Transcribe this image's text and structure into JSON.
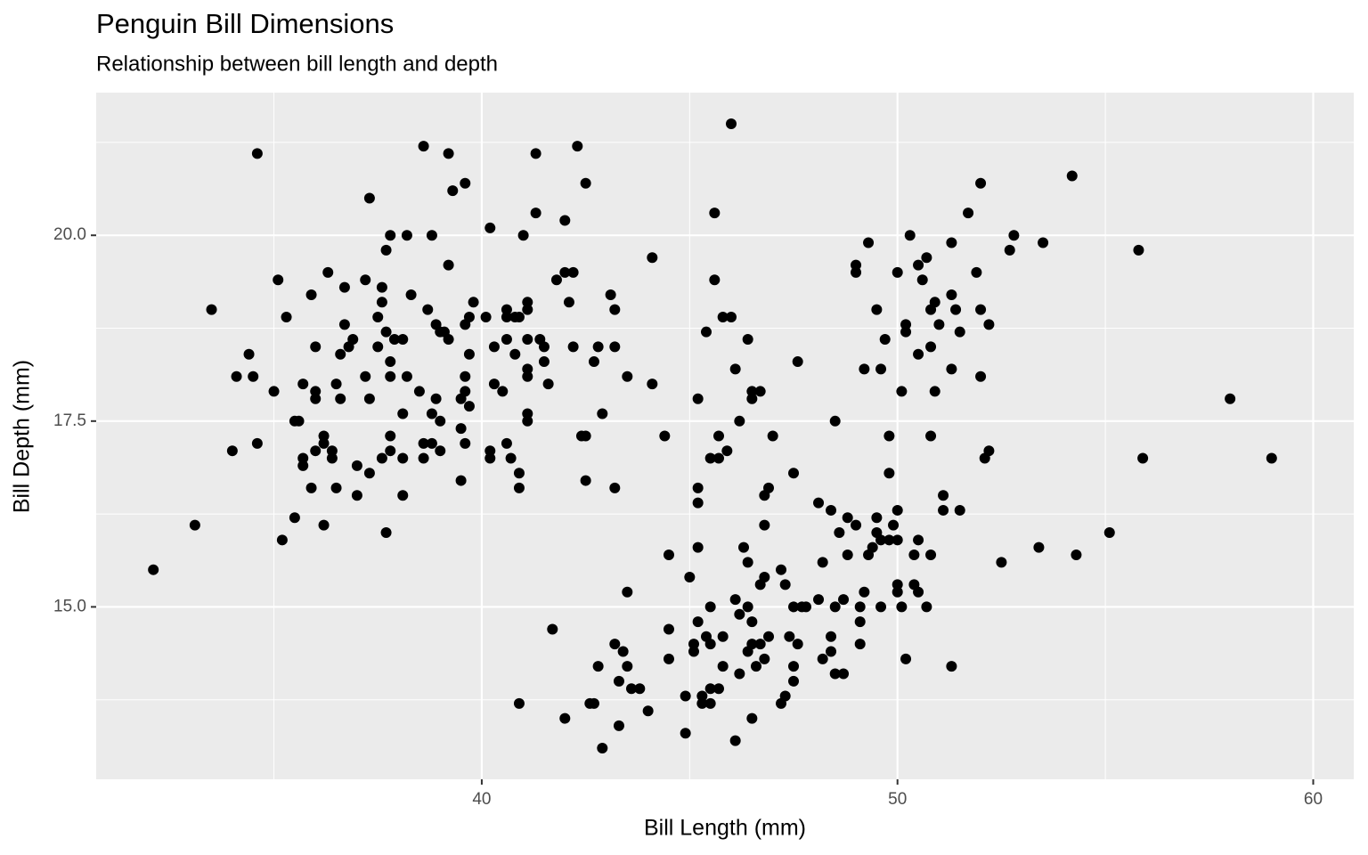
{
  "chart_data": {
    "type": "scatter",
    "title": "Penguin Bill Dimensions",
    "subtitle": "Relationship between bill length and depth",
    "x_label": "Bill Length (mm)",
    "y_label": "Bill Depth (mm)",
    "color": "#000000",
    "grid": true,
    "xlim": [
      30.725,
      60.975
    ],
    "ylim": [
      12.68,
      21.92
    ],
    "xticks": [
      40,
      50,
      60
    ],
    "yticks": [
      {
        "value": 15,
        "label": "15.0"
      },
      {
        "value": 17.5,
        "label": "17.5"
      },
      {
        "value": 20,
        "label": "20.0"
      }
    ],
    "x": [
      32.1,
      33.1,
      33.5,
      34.0,
      34.1,
      34.4,
      34.5,
      34.6,
      34.6,
      35.0,
      35.1,
      35.2,
      35.3,
      35.5,
      35.6,
      35.5,
      35.7,
      35.7,
      35.7,
      35.9,
      35.9,
      36.0,
      36.0,
      36.0,
      36.0,
      36.2,
      36.2,
      36.2,
      36.3,
      36.4,
      36.4,
      36.5,
      36.5,
      36.6,
      36.6,
      36.7,
      36.7,
      36.8,
      36.9,
      37.0,
      37.0,
      37.2,
      37.2,
      37.3,
      37.3,
      37.3,
      37.5,
      37.5,
      37.6,
      37.6,
      37.6,
      37.7,
      37.7,
      37.7,
      37.8,
      37.8,
      37.8,
      37.8,
      37.8,
      37.9,
      38.1,
      38.1,
      38.1,
      38.1,
      38.2,
      38.2,
      38.3,
      38.5,
      38.6,
      38.6,
      38.6,
      38.7,
      38.8,
      38.8,
      38.8,
      38.9,
      38.9,
      39.0,
      39.0,
      39.0,
      39.1,
      39.2,
      39.2,
      39.2,
      39.3,
      39.5,
      39.5,
      39.5,
      39.6,
      39.6,
      39.6,
      39.6,
      39.6,
      39.7,
      39.7,
      39.7,
      39.8,
      40.1,
      40.2,
      40.2,
      40.2,
      40.3,
      40.3,
      40.5,
      40.6,
      40.6,
      40.6,
      40.6,
      40.7,
      40.8,
      40.8,
      40.9,
      40.9,
      40.9,
      40.9,
      41.0,
      41.1,
      41.1,
      41.1,
      41.1,
      41.1,
      41.1,
      41.1,
      41.3,
      41.3,
      41.4,
      41.5,
      41.5,
      41.6,
      41.7,
      41.8,
      42.0,
      42.0,
      42.0,
      42.1,
      42.2,
      42.2,
      42.3,
      42.4,
      42.5,
      42.5,
      42.5,
      42.6,
      42.7,
      42.7,
      42.8,
      42.8,
      42.9,
      42.9,
      43.1,
      43.2,
      43.2,
      43.2,
      43.2,
      43.3,
      43.3,
      43.4,
      43.5,
      43.5,
      43.5,
      43.6,
      43.8,
      44.0,
      44.1,
      44.1,
      44.4,
      44.5,
      44.5,
      44.5,
      44.9,
      44.9,
      45.0,
      45.1,
      45.1,
      45.2,
      45.2,
      45.2,
      45.2,
      45.2,
      45.3,
      45.3,
      45.4,
      45.4,
      45.5,
      45.5,
      45.5,
      45.5,
      45.5,
      45.6,
      45.6,
      45.7,
      45.7,
      45.7,
      45.8,
      45.8,
      45.8,
      45.9,
      46.0,
      46.0,
      46.1,
      46.1,
      46.1,
      46.2,
      46.2,
      46.2,
      46.3,
      46.4,
      46.4,
      46.4,
      46.4,
      46.5,
      46.5,
      46.5,
      46.5,
      46.5,
      46.6,
      46.7,
      46.7,
      46.7,
      46.8,
      46.8,
      46.8,
      46.8,
      46.9,
      46.9,
      47.0,
      47.2,
      47.2,
      47.3,
      47.3,
      47.4,
      47.5,
      47.5,
      47.5,
      47.5,
      47.6,
      47.6,
      47.7,
      47.8,
      48.1,
      48.1,
      48.2,
      48.2,
      48.4,
      48.4,
      48.4,
      48.5,
      48.5,
      48.5,
      48.6,
      48.7,
      48.7,
      48.8,
      48.8,
      49.0,
      49.0,
      49.0,
      49.1,
      49.1,
      49.1,
      49.2,
      49.2,
      49.3,
      49.3,
      49.4,
      49.5,
      49.5,
      49.5,
      49.6,
      49.6,
      49.6,
      49.7,
      49.8,
      49.8,
      49.8,
      49.9,
      50.0,
      50.0,
      50.0,
      50.0,
      50.0,
      50.1,
      50.1,
      50.2,
      50.2,
      50.2,
      50.3,
      50.4,
      50.4,
      50.5,
      50.5,
      50.5,
      50.5,
      50.6,
      50.7,
      50.7,
      50.8,
      50.8,
      50.8,
      50.8,
      50.9,
      50.9,
      51.0,
      51.1,
      51.1,
      51.3,
      51.3,
      51.3,
      51.3,
      51.4,
      51.5,
      51.5,
      51.7,
      51.9,
      52.0,
      52.0,
      52.0,
      52.1,
      52.2,
      52.2,
      52.5,
      52.7,
      52.8,
      53.4,
      53.5,
      54.2,
      54.3,
      55.1,
      55.8,
      55.9,
      58.0,
      59.0
    ],
    "values": [
      15.5,
      16.1,
      19.0,
      17.1,
      18.1,
      18.4,
      18.1,
      21.1,
      17.2,
      17.9,
      19.4,
      15.9,
      18.9,
      17.5,
      17.5,
      16.2,
      18.0,
      17.0,
      16.9,
      19.2,
      16.6,
      18.5,
      17.9,
      17.8,
      17.1,
      17.3,
      17.2,
      16.1,
      19.5,
      17.1,
      17.0,
      18.0,
      16.6,
      18.4,
      17.8,
      19.3,
      18.8,
      18.5,
      18.6,
      16.9,
      16.5,
      19.4,
      18.1,
      20.5,
      17.8,
      16.8,
      18.9,
      18.5,
      19.3,
      19.1,
      17.0,
      19.8,
      18.7,
      16.0,
      20.0,
      18.3,
      18.1,
      17.3,
      17.1,
      18.6,
      18.6,
      17.6,
      17.0,
      16.5,
      20.0,
      18.1,
      19.2,
      17.9,
      21.2,
      17.2,
      17.0,
      19.0,
      20.0,
      17.6,
      17.2,
      18.8,
      17.8,
      18.7,
      17.5,
      17.1,
      18.7,
      21.1,
      19.6,
      18.6,
      20.6,
      17.4,
      16.7,
      17.8,
      20.7,
      18.8,
      18.1,
      17.9,
      17.2,
      18.9,
      17.7,
      18.4,
      19.1,
      18.9,
      20.1,
      17.1,
      17.0,
      18.5,
      18.0,
      17.9,
      18.9,
      19.0,
      18.6,
      17.2,
      17.0,
      18.4,
      18.9,
      18.9,
      16.8,
      16.6,
      13.7,
      20.0,
      19.0,
      19.1,
      18.6,
      18.2,
      18.1,
      17.6,
      17.5,
      21.1,
      20.3,
      18.6,
      18.5,
      18.3,
      18.0,
      14.7,
      19.4,
      20.2,
      19.5,
      13.5,
      19.1,
      19.5,
      18.5,
      21.2,
      17.3,
      20.7,
      17.3,
      16.7,
      13.7,
      18.3,
      13.7,
      18.5,
      14.2,
      17.6,
      13.1,
      19.2,
      19.0,
      18.5,
      16.6,
      14.5,
      13.4,
      14.0,
      14.4,
      15.2,
      18.1,
      14.2,
      13.9,
      13.9,
      13.6,
      19.7,
      18.0,
      17.3,
      15.7,
      14.7,
      14.3,
      13.8,
      13.3,
      15.4,
      14.5,
      14.4,
      17.8,
      16.6,
      16.4,
      15.8,
      14.8,
      13.7,
      13.8,
      18.7,
      14.6,
      15.0,
      14.5,
      13.7,
      17.0,
      13.9,
      20.3,
      19.4,
      17.3,
      13.9,
      17.0,
      18.9,
      14.6,
      14.2,
      17.1,
      18.9,
      21.5,
      18.2,
      15.1,
      13.2,
      17.5,
      14.9,
      14.1,
      15.8,
      18.6,
      15.0,
      15.6,
      14.4,
      17.9,
      17.8,
      14.8,
      14.5,
      13.5,
      14.2,
      17.9,
      15.3,
      14.5,
      16.5,
      16.1,
      15.4,
      14.3,
      16.6,
      14.6,
      17.3,
      15.5,
      13.7,
      15.3,
      13.8,
      14.6,
      16.8,
      15.0,
      14.2,
      14.0,
      18.3,
      14.5,
      15.0,
      15.0,
      15.1,
      16.4,
      15.6,
      14.3,
      16.3,
      14.6,
      14.4,
      17.5,
      15.0,
      14.1,
      16.0,
      15.1,
      14.1,
      16.2,
      15.7,
      19.6,
      19.5,
      16.1,
      15.0,
      14.8,
      14.5,
      18.2,
      15.2,
      19.9,
      15.7,
      15.8,
      19.0,
      16.2,
      16.0,
      18.2,
      15.9,
      15.0,
      18.6,
      17.3,
      16.8,
      15.9,
      16.1,
      16.3,
      15.9,
      15.3,
      15.2,
      19.5,
      17.9,
      15.0,
      18.8,
      18.7,
      14.3,
      20.0,
      15.7,
      15.3,
      19.6,
      18.4,
      15.9,
      15.2,
      19.4,
      19.7,
      15.0,
      19.0,
      18.5,
      17.3,
      15.7,
      19.1,
      17.9,
      18.8,
      16.5,
      16.3,
      19.9,
      19.2,
      18.2,
      14.2,
      19.0,
      18.7,
      16.3,
      20.3,
      19.5,
      20.7,
      19.0,
      18.1,
      17.0,
      18.8,
      17.1,
      15.6,
      19.8,
      20.0,
      15.8,
      19.9,
      20.8,
      15.7,
      16.0,
      19.8,
      17.0,
      17.8,
      17.0
    ]
  }
}
